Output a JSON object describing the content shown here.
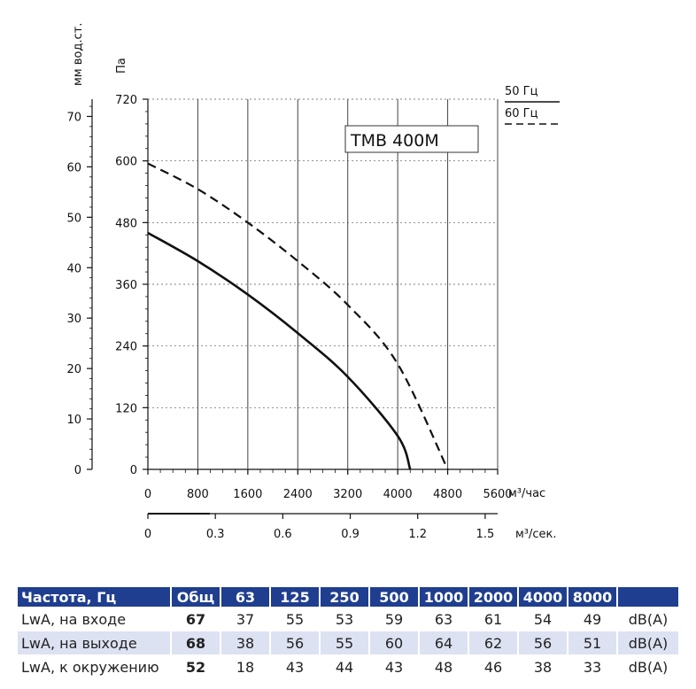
{
  "chart_data": {
    "type": "line",
    "model": "TMB 400M",
    "left_axis_unit": "мм вод.ст.",
    "left_axis_ticks": [
      0,
      10,
      20,
      30,
      40,
      50,
      60,
      70
    ],
    "y_unit": "Па",
    "y_ticks": [
      0,
      120,
      240,
      360,
      480,
      600,
      720
    ],
    "ylim": [
      0,
      720
    ],
    "x_unit": "м³/час",
    "x_ticks": [
      0,
      800,
      1600,
      2400,
      3200,
      4000,
      4800,
      5600
    ],
    "xlim": [
      0,
      5600
    ],
    "x2_unit": "м³/сек.",
    "x2_ticks": [
      "0",
      "0.3",
      "0.6",
      "0.9",
      "1.2",
      "1.5"
    ],
    "legend": [
      "50 Гц",
      "60 Гц"
    ],
    "series": [
      {
        "name": "50 Гц",
        "style": "solid",
        "x": [
          0,
          800,
          1600,
          2400,
          3200,
          4000,
          4200
        ],
        "y": [
          460,
          405,
          340,
          265,
          180,
          65,
          0
        ]
      },
      {
        "name": "60 Гц",
        "style": "dashed",
        "x": [
          0,
          800,
          1600,
          2400,
          3200,
          4000,
          4800
        ],
        "y": [
          595,
          545,
          480,
          405,
          320,
          205,
          0
        ]
      }
    ]
  },
  "noise_table": {
    "headers": [
      "Частота, Гц",
      "Общ",
      "63",
      "125",
      "250",
      "500",
      "1000",
      "2000",
      "4000",
      "8000",
      ""
    ],
    "rows": [
      {
        "label": "LwA, на входе",
        "total": "67",
        "values": [
          "37",
          "55",
          "53",
          "59",
          "63",
          "61",
          "54",
          "49"
        ],
        "unit": "dB(A)"
      },
      {
        "label": "LwA, на выходе",
        "total": "68",
        "values": [
          "38",
          "56",
          "55",
          "60",
          "64",
          "62",
          "56",
          "51"
        ],
        "unit": "dB(A)"
      },
      {
        "label": "LwA, к окружению",
        "total": "52",
        "values": [
          "18",
          "43",
          "44",
          "43",
          "48",
          "46",
          "38",
          "33"
        ],
        "unit": "dB(A)"
      }
    ]
  }
}
